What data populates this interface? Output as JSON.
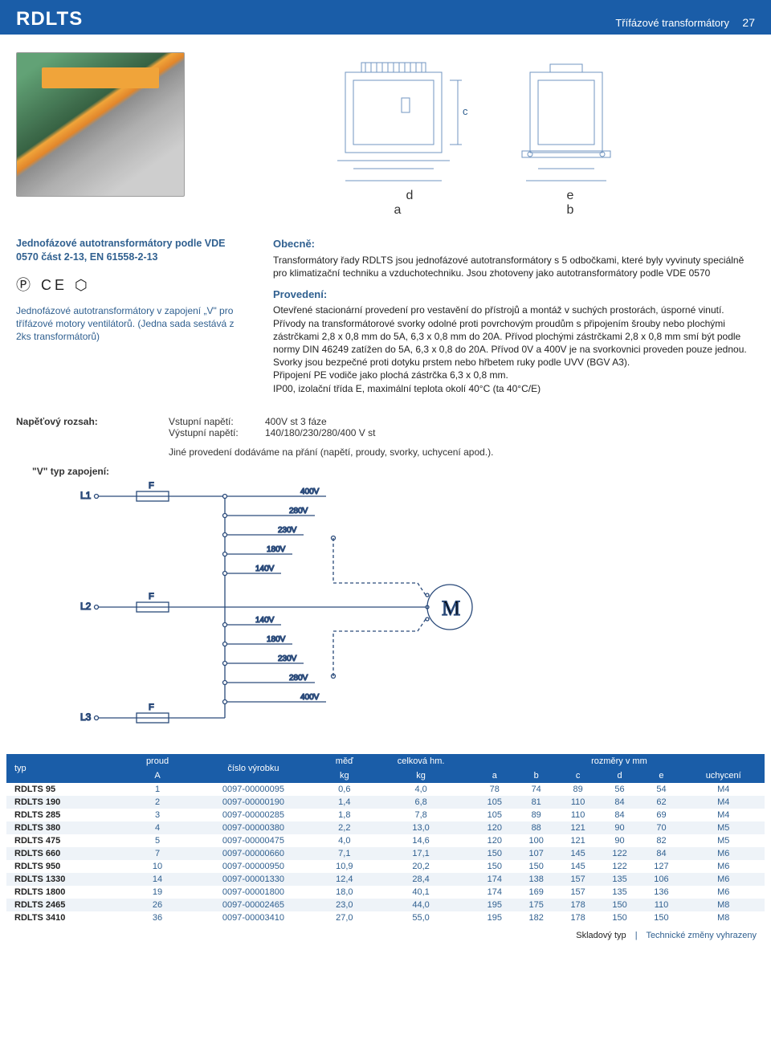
{
  "header": {
    "title": "RDLTS",
    "subtitle": "Třífázové transformátory",
    "page": "27"
  },
  "diagrams": {
    "front": {
      "dims": [
        "d",
        "a"
      ],
      "dim_c": "c"
    },
    "side": {
      "dims": [
        "e",
        "b"
      ]
    },
    "stroke": "#7296c0"
  },
  "left": {
    "heading": "Jednofázové autotransformátory podle VDE 0570 část 2-13, EN 61558-2-13",
    "certs": "Ⓟ CE ⬡",
    "para": "Jednofázové autotransformátory v zapojení „V\" pro třífázové motory ventilátorů.\n(Jedna sada sestává z 2ks transformátorů)"
  },
  "sections": {
    "obecne_h": "Obecně:",
    "obecne": "Transformátory řady RDLTS jsou jednofázové autotransformátory s 5 odbočkami, které byly vyvinuty speciálně pro klimatizační techniku a vzduchotechniku. Jsou zhotoveny jako autotransformátory podle VDE 0570",
    "prov_h": "Provedení:",
    "prov": "Otevřené stacionární provedení pro vestavění do přístrojů a montáž v suchých prostorách, úsporné vinutí. Přívody na transformátorové svorky odolné proti povrchovým proudům s připojením šrouby nebo plochými zástrčkami 2,8 x 0,8 mm do 5A, 6,3 x 0,8 mm do 20A. Přívod plochými zástrčkami 2,8 x 0,8 mm smí být podle normy DIN 46249 zatížen do 5A, 6,3 x 0,8 do 20A. Přívod 0V a 400V je na svorkovnici proveden pouze jednou. Svorky jsou bezpečné proti dotyku prstem nebo hřbetem ruky podle UVV (BGV A3).\nPřipojení PE vodiče jako plochá zástrčka 6,3 x 0,8 mm.\nIP00, izolační třída E, maximální teplota okolí 40°C (ta 40°C/E)"
  },
  "voltage": {
    "label": "Napěťový rozsah:",
    "in_k": "Vstupní napětí:",
    "in_v": "400V st  3 fáze",
    "out_k": "Výstupní napětí:",
    "out_v": "140/180/230/280/400 V st",
    "extra": "Jiné provedení dodáváme na přání (napětí, proudy, svorky, uchycení apod.)."
  },
  "wiring": {
    "title": "\"V\" typ zapojení:",
    "labels": {
      "L1": "L1",
      "L2": "L2",
      "L3": "L3",
      "F": "F",
      "M": "M"
    },
    "taps_top": [
      "400V",
      "280V",
      "230V",
      "180V",
      "140V"
    ],
    "taps_bot": [
      "140V",
      "180V",
      "230V",
      "280V",
      "400V"
    ],
    "stroke": "#2a4a7a"
  },
  "table": {
    "head": {
      "typ": "typ",
      "proud": "proud",
      "proud_u": "A",
      "cislo": "číslo výrobku",
      "med": "měď",
      "med_u": "kg",
      "hm": "celková hm.",
      "hm_u": "kg",
      "rozm": "rozměry v mm",
      "a": "a",
      "b": "b",
      "c": "c",
      "d": "d",
      "e": "e",
      "uch": "uchycení"
    },
    "rows": [
      [
        "RDLTS 95",
        "1",
        "0097-00000095",
        "0,6",
        "4,0",
        "78",
        "74",
        "89",
        "56",
        "54",
        "M4"
      ],
      [
        "RDLTS 190",
        "2",
        "0097-00000190",
        "1,4",
        "6,8",
        "105",
        "81",
        "110",
        "84",
        "62",
        "M4"
      ],
      [
        "RDLTS 285",
        "3",
        "0097-00000285",
        "1,8",
        "7,8",
        "105",
        "89",
        "110",
        "84",
        "69",
        "M4"
      ],
      [
        "RDLTS 380",
        "4",
        "0097-00000380",
        "2,2",
        "13,0",
        "120",
        "88",
        "121",
        "90",
        "70",
        "M5"
      ],
      [
        "RDLTS 475",
        "5",
        "0097-00000475",
        "4,0",
        "14,6",
        "120",
        "100",
        "121",
        "90",
        "82",
        "M5"
      ],
      [
        "RDLTS 660",
        "7",
        "0097-00000660",
        "7,1",
        "17,1",
        "150",
        "107",
        "145",
        "122",
        "84",
        "M6"
      ],
      [
        "RDLTS 950",
        "10",
        "0097-00000950",
        "10,9",
        "20,2",
        "150",
        "150",
        "145",
        "122",
        "127",
        "M6"
      ],
      [
        "RDLTS 1330",
        "14",
        "0097-00001330",
        "12,4",
        "28,4",
        "174",
        "138",
        "157",
        "135",
        "106",
        "M6"
      ],
      [
        "RDLTS 1800",
        "19",
        "0097-00001800",
        "18,0",
        "40,1",
        "174",
        "169",
        "157",
        "135",
        "136",
        "M6"
      ],
      [
        "RDLTS 2465",
        "26",
        "0097-00002465",
        "23,0",
        "44,0",
        "195",
        "175",
        "178",
        "150",
        "110",
        "M8"
      ],
      [
        "RDLTS 3410",
        "36",
        "0097-00003410",
        "27,0",
        "55,0",
        "195",
        "182",
        "178",
        "150",
        "150",
        "M8"
      ]
    ]
  },
  "footer": {
    "sklad": "Skladový typ",
    "sep": "|",
    "tech": "Technické změny vyhrazeny"
  }
}
